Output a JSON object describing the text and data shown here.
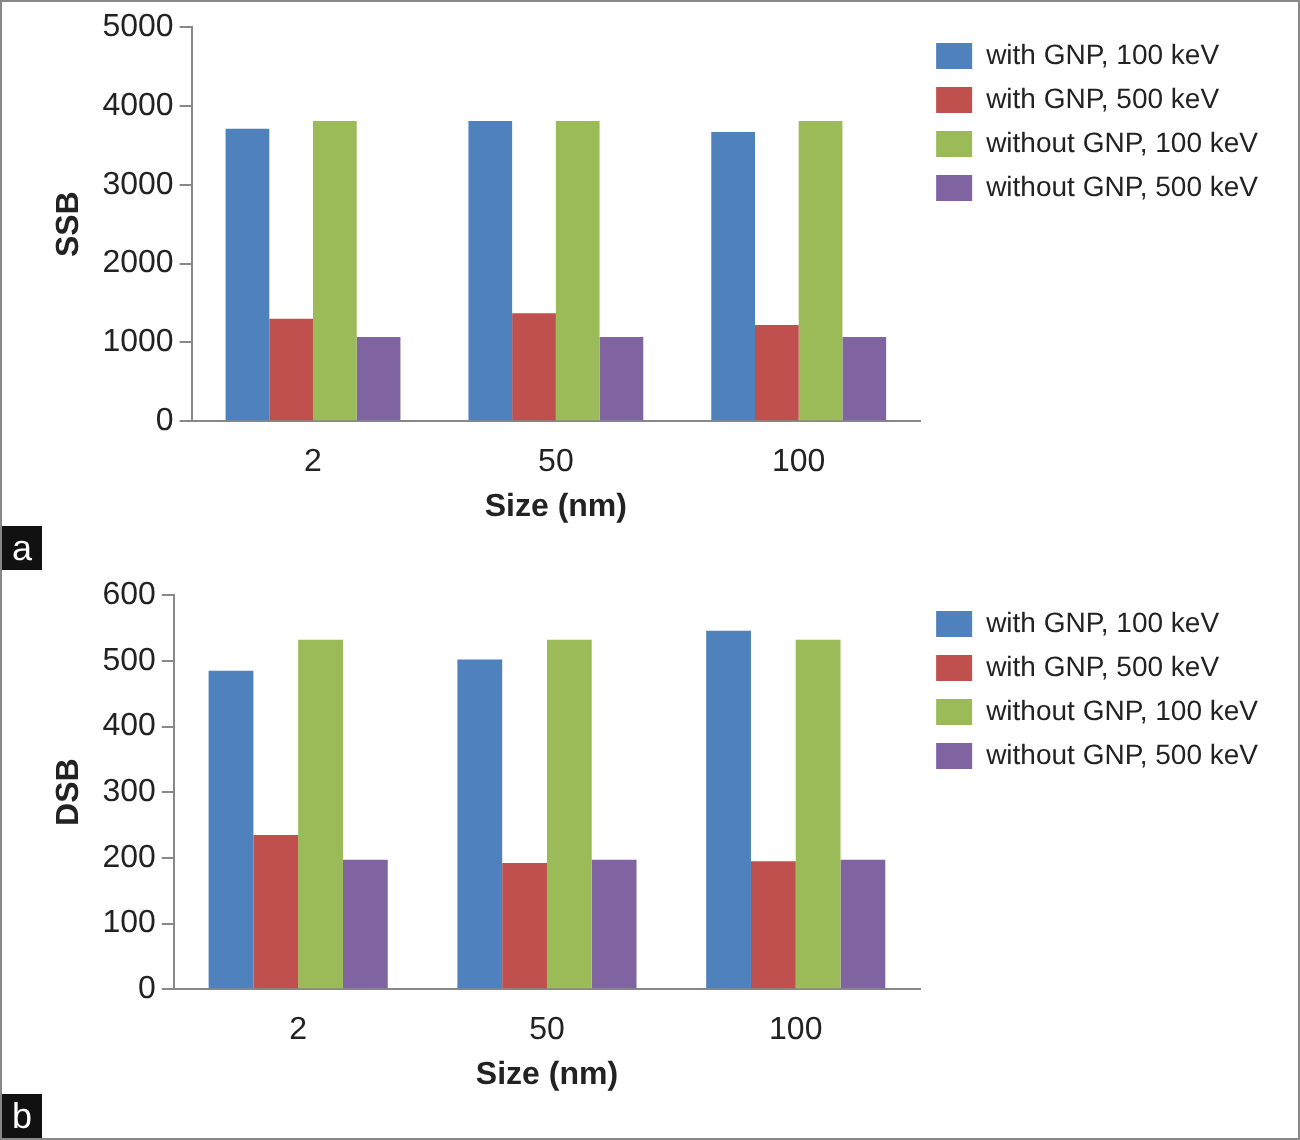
{
  "chart_data": [
    {
      "type": "bar",
      "xlabel": "Size (nm)",
      "ylabel": "SSB",
      "categories": [
        "2",
        "50",
        "100"
      ],
      "ylim": [
        0,
        5000
      ],
      "yticks": [
        0,
        1000,
        2000,
        3000,
        4000,
        5000
      ],
      "grid": false,
      "legend": "right",
      "annotations": [
        "a"
      ],
      "series": [
        {
          "name": "with GNP, 100 keV",
          "color": "#4f81bd",
          "values": [
            3710,
            3810,
            3670
          ]
        },
        {
          "name": "with GNP, 500 keV",
          "color": "#c0504d",
          "values": [
            1300,
            1370,
            1220
          ]
        },
        {
          "name": "without GNP, 100 keV",
          "color": "#9bbb59",
          "values": [
            3810,
            3810,
            3810
          ]
        },
        {
          "name": "without GNP, 500 keV",
          "color": "#8064a2",
          "values": [
            1070,
            1070,
            1070
          ]
        }
      ]
    },
    {
      "type": "bar",
      "xlabel": "Size (nm)",
      "ylabel": "DSB",
      "categories": [
        "2",
        "50",
        "100"
      ],
      "ylim": [
        0,
        600
      ],
      "yticks": [
        0,
        100,
        200,
        300,
        400,
        500,
        600
      ],
      "grid": false,
      "legend": "right",
      "annotations": [
        "b"
      ],
      "series": [
        {
          "name": "with GNP, 100 keV",
          "color": "#4f81bd",
          "values": [
            485,
            502,
            546
          ]
        },
        {
          "name": "with GNP, 500 keV",
          "color": "#c0504d",
          "values": [
            235,
            192,
            195
          ]
        },
        {
          "name": "without GNP, 100 keV",
          "color": "#9bbb59",
          "values": [
            532,
            532,
            532
          ]
        },
        {
          "name": "without GNP, 500 keV",
          "color": "#8064a2",
          "values": [
            197,
            197,
            197
          ]
        }
      ]
    }
  ]
}
